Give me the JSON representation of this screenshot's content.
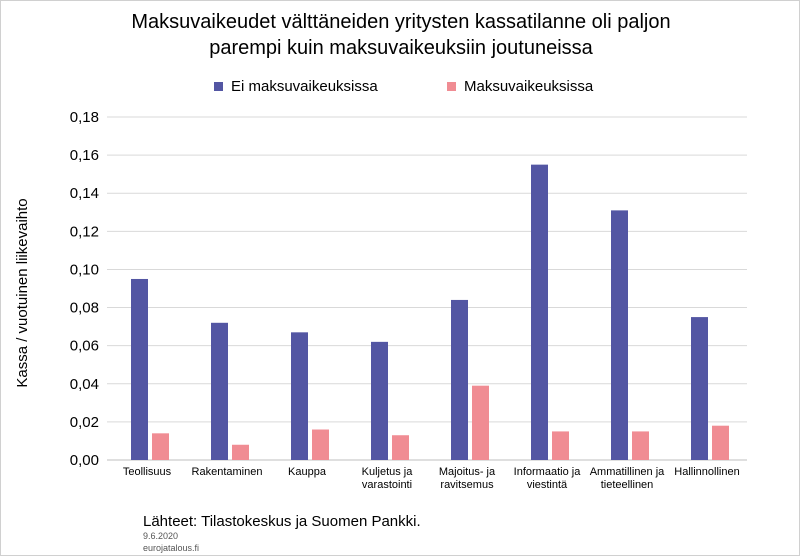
{
  "title_line1": "Maksuvaikeudet välttäneiden yritysten kassatilanne oli paljon",
  "title_line2": "parempi kuin maksuvaikeuksiin joutuneissa",
  "source": "Lähteet: Tilastokeskus ja Suomen Pankki.",
  "date": "9.6.2020",
  "site": "eurojatalous.fi",
  "colors": {
    "series1": "#5356a3",
    "series2": "#f08c93",
    "grid": "#d9d9d9",
    "axis": "#bfbfbf"
  },
  "chart_data": {
    "type": "bar",
    "ylabel": "Kassa / vuotuinen liikevaihto",
    "xlabel": "",
    "ylim": [
      0,
      0.18
    ],
    "yticks": [
      "0,00",
      "0,02",
      "0,04",
      "0,06",
      "0,08",
      "0,10",
      "0,12",
      "0,14",
      "0,16",
      "0,18"
    ],
    "grid": true,
    "legend_position": "top",
    "categories": [
      [
        "Teollisuus"
      ],
      [
        "Rakentaminen"
      ],
      [
        "Kauppa"
      ],
      [
        "Kuljetus ja",
        "varastointi"
      ],
      [
        "Majoitus- ja",
        "ravitsemus"
      ],
      [
        "Informaatio ja",
        "viestintä"
      ],
      [
        "Ammatillinen ja",
        "tieteellinen"
      ],
      [
        "Hallinnollinen"
      ]
    ],
    "series": [
      {
        "name": "Ei maksuvaikeuksissa",
        "values": [
          0.095,
          0.072,
          0.067,
          0.062,
          0.084,
          0.155,
          0.131,
          0.075
        ]
      },
      {
        "name": "Maksuvaikeuksissa",
        "values": [
          0.014,
          0.008,
          0.016,
          0.013,
          0.039,
          0.015,
          0.015,
          0.018
        ]
      }
    ]
  }
}
